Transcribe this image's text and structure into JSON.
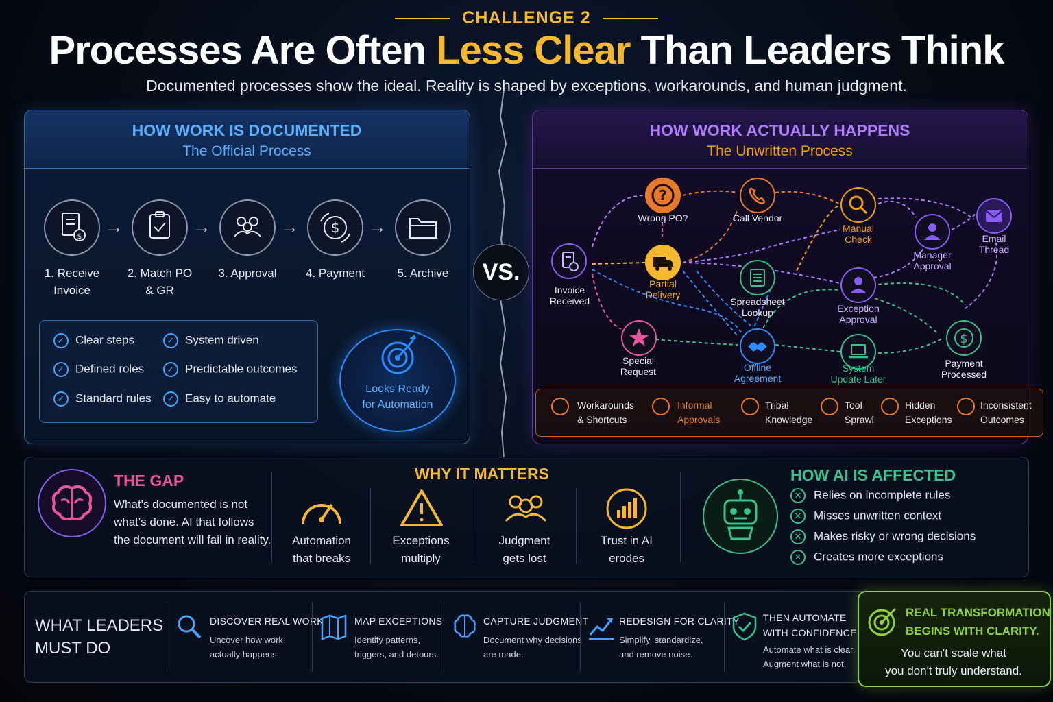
{
  "header": {
    "eyebrow": "CHALLENGE 2",
    "title_part1": "Processes Are Often ",
    "title_highlight": "Less Clear",
    "title_part2": " Than Leaders Think",
    "subtitle": "Documented processes show the ideal. Reality is shaped by exceptions, workarounds, and human judgment."
  },
  "documented": {
    "title": "HOW WORK IS DOCUMENTED",
    "subtitle": "The Official Process",
    "steps": [
      {
        "line1": "1. Receive",
        "line2": "Invoice",
        "icon": "invoice-icon"
      },
      {
        "line1": "2. Match PO",
        "line2": "& GR",
        "icon": "clipboard-check-icon"
      },
      {
        "line1": "3. Approval",
        "line2": "",
        "icon": "people-icon"
      },
      {
        "line1": "4. Payment",
        "line2": "",
        "icon": "dollar-cycle-icon"
      },
      {
        "line1": "5. Archive",
        "line2": "",
        "icon": "folder-icon"
      }
    ],
    "checks": [
      "Clear steps",
      "System driven",
      "Defined roles",
      "Predictable outcomes",
      "Standard rules",
      "Easy to automate"
    ],
    "ready_line1": "Looks Ready",
    "ready_line2": "for Automation"
  },
  "vs": "VS.",
  "actual": {
    "title": "HOW WORK ACTUALLY HAPPENS",
    "subtitle": "The Unwritten Process",
    "nodes": [
      {
        "id": "invoice",
        "line1": "Invoice",
        "line2": "Received",
        "color": "#8a5cf6"
      },
      {
        "id": "wrongpo",
        "line1": "Wrong PO?",
        "line2": "",
        "color": "#e8792a"
      },
      {
        "id": "partial",
        "line1": "Partial",
        "line2": "Delivery",
        "color": "#f5b82e"
      },
      {
        "id": "callvendor",
        "line1": "Call Vendor",
        "line2": "",
        "color": "#e8792a"
      },
      {
        "id": "spreadsheet",
        "line1": "Spreadsheet",
        "line2": "Lookup",
        "color": "#37c28a"
      },
      {
        "id": "manual",
        "line1": "Manual",
        "line2": "Check",
        "color": "#f59e0b"
      },
      {
        "id": "manager",
        "line1": "Manager",
        "line2": "Approval",
        "color": "#8a5cf6"
      },
      {
        "id": "email",
        "line1": "Email",
        "line2": "Thread",
        "color": "#8a5cf6"
      },
      {
        "id": "exception",
        "line1": "Exception",
        "line2": "Approval",
        "color": "#8a5cf6"
      },
      {
        "id": "special",
        "line1": "Special",
        "line2": "Request",
        "color": "#e8559a"
      },
      {
        "id": "offline",
        "line1": "Offline",
        "line2": "Agreement",
        "color": "#2a8cff"
      },
      {
        "id": "system",
        "line1": "System",
        "line2": "Update Later",
        "color": "#37c28a"
      },
      {
        "id": "payment",
        "line1": "Payment",
        "line2": "Processed",
        "color": "#37c28a"
      }
    ],
    "legend": [
      {
        "line1": "Workarounds",
        "line2": "& Shortcuts",
        "icon": "lightbulb-icon",
        "color": "#e6e9f0"
      },
      {
        "line1": "Informal",
        "line2": "Approvals",
        "icon": "person-icon",
        "color": "#e8792a"
      },
      {
        "line1": "Tribal",
        "line2": "Knowledge",
        "icon": "group-icon",
        "color": "#e6e9f0"
      },
      {
        "line1": "Tool",
        "line2": "Sprawl",
        "icon": "tools-icon",
        "color": "#e6e9f0"
      },
      {
        "line1": "Hidden",
        "line2": "Exceptions",
        "icon": "warning-icon",
        "color": "#e6e9f0"
      },
      {
        "line1": "Inconsistent",
        "line2": "Outcomes",
        "icon": "refresh-icon",
        "color": "#e6e9f0"
      }
    ]
  },
  "gap": {
    "title": "THE GAP",
    "text1": "What's documented is not",
    "text2": "what's done. AI that follows",
    "text3": "the document will fail in reality."
  },
  "why": {
    "title": "WHY IT MATTERS",
    "items": [
      {
        "line1": "Automation",
        "line2": "that breaks",
        "icon": "gauge-icon"
      },
      {
        "line1": "Exceptions",
        "line2": "multiply",
        "icon": "warning-icon"
      },
      {
        "line1": "Judgment",
        "line2": "gets lost",
        "icon": "group-icon"
      },
      {
        "line1": "Trust in AI",
        "line2": "erodes",
        "icon": "chart-down-icon"
      }
    ]
  },
  "ai": {
    "title": "HOW AI IS AFFECTED",
    "items": [
      "Relies on incomplete rules",
      "Misses unwritten context",
      "Makes risky or wrong decisions",
      "Creates more exceptions"
    ]
  },
  "leaders": {
    "title_line1": "WHAT LEADERS",
    "title_line2": "MUST DO",
    "actions": [
      {
        "title": "DISCOVER REAL WORK",
        "line1": "Uncover how work",
        "line2": "actually happens.",
        "icon": "magnifier-icon"
      },
      {
        "title": "MAP EXCEPTIONS",
        "line1": "Identify patterns,",
        "line2": "triggers, and detours.",
        "icon": "map-icon"
      },
      {
        "title": "CAPTURE JUDGMENT",
        "line1": "Document why decisions",
        "line2": "are made.",
        "icon": "brain-icon"
      },
      {
        "title": "REDESIGN FOR CLARITY",
        "line1": "Simplify, standardize,",
        "line2": "and remove noise.",
        "icon": "trend-up-icon"
      },
      {
        "title_line1": "THEN AUTOMATE",
        "title_line2": "WITH CONFIDENCE",
        "line1": "Automate what is clear.",
        "line2": "Augment what is not.",
        "icon": "shield-check-icon"
      }
    ],
    "final_title1": "REAL TRANSFORMATION",
    "final_title2": "BEGINS WITH CLARITY.",
    "final_text1": "You can't scale what",
    "final_text2": "you don't truly understand."
  },
  "colors": {
    "gold": "#f5b82e",
    "blue": "#2a8cff",
    "purple": "#8a5cf6",
    "orange": "#e8792a",
    "green": "#37c28a",
    "pink": "#e8559a",
    "lime": "#8fd13a"
  }
}
